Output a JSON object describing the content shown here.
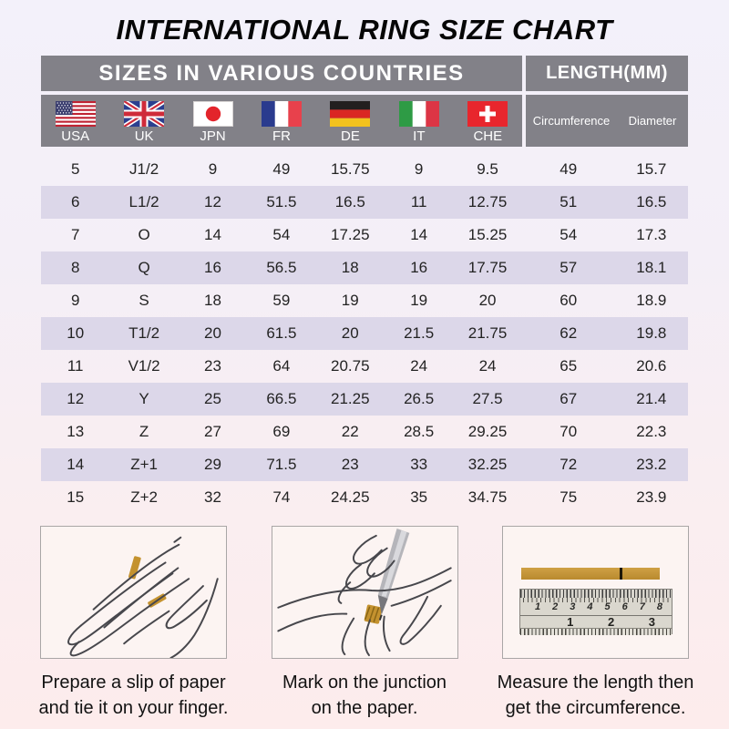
{
  "title": "INTERNATIONAL RING SIZE CHART",
  "chart_data": {
    "type": "table",
    "title": "INTERNATIONAL RING SIZE CHART",
    "section_headers": {
      "left": "SIZES IN VARIOUS COUNTRIES",
      "right": "LENGTH(MM)"
    },
    "columns": [
      "USA",
      "UK",
      "JPN",
      "FR",
      "DE",
      "IT",
      "CHE",
      "Circumference",
      "Diameter"
    ],
    "rows": [
      [
        "5",
        "J1/2",
        "9",
        "49",
        "15.75",
        "9",
        "9.5",
        "49",
        "15.7"
      ],
      [
        "6",
        "L1/2",
        "12",
        "51.5",
        "16.5",
        "11",
        "12.75",
        "51",
        "16.5"
      ],
      [
        "7",
        "O",
        "14",
        "54",
        "17.25",
        "14",
        "15.25",
        "54",
        "17.3"
      ],
      [
        "8",
        "Q",
        "16",
        "56.5",
        "18",
        "16",
        "17.75",
        "57",
        "18.1"
      ],
      [
        "9",
        "S",
        "18",
        "59",
        "19",
        "19",
        "20",
        "60",
        "18.9"
      ],
      [
        "10",
        "T1/2",
        "20",
        "61.5",
        "20",
        "21.5",
        "21.75",
        "62",
        "19.8"
      ],
      [
        "11",
        "V1/2",
        "23",
        "64",
        "20.75",
        "24",
        "24",
        "65",
        "20.6"
      ],
      [
        "12",
        "Y",
        "25",
        "66.5",
        "21.25",
        "26.5",
        "27.5",
        "67",
        "21.4"
      ],
      [
        "13",
        "Z",
        "27",
        "69",
        "22",
        "28.5",
        "29.25",
        "70",
        "22.3"
      ],
      [
        "14",
        "Z+1",
        "29",
        "71.5",
        "23",
        "33",
        "32.25",
        "72",
        "23.2"
      ],
      [
        "15",
        "Z+2",
        "32",
        "74",
        "24.25",
        "35",
        "34.75",
        "75",
        "23.9"
      ]
    ]
  },
  "flag_icons": [
    "usa-flag-icon",
    "uk-flag-icon",
    "japan-flag-icon",
    "france-flag-icon",
    "germany-flag-icon",
    "italy-flag-icon",
    "switzerland-flag-icon"
  ],
  "instructions": [
    {
      "illustration": "hand-with-paper-strip-illustration",
      "lines": [
        "Prepare a slip of paper",
        "and tie it on your finger."
      ]
    },
    {
      "illustration": "pen-marking-junction-illustration",
      "lines": [
        "Mark on the junction",
        "on the paper."
      ]
    },
    {
      "illustration": "ruler-measure-illustration",
      "lines": [
        "Measure the length then",
        "get the circumference."
      ]
    }
  ],
  "ruler": {
    "cm_numbers": [
      "1",
      "2",
      "3",
      "4",
      "5",
      "6",
      "7",
      "8"
    ],
    "inch_numbers": [
      "1",
      "2",
      "3"
    ]
  },
  "colors": {
    "header_gray": "#828188",
    "row_shaded": "#dcd7e9",
    "paper_strip_gold": "#c0912f",
    "background_top": "#f3f1fa",
    "background_bottom": "#fdecec"
  }
}
